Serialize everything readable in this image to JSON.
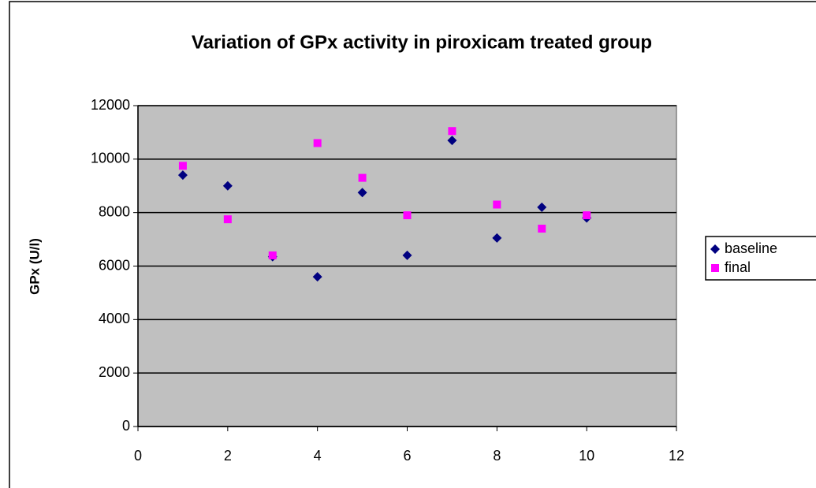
{
  "chart_data": {
    "type": "scatter",
    "title": "Variation of GPx activity in piroxicam treated group",
    "y_label": "GPx (U/l)",
    "series": [
      {
        "name": "baseline",
        "color": "#000080",
        "marker": "diamond",
        "x": [
          1,
          2,
          3,
          4,
          5,
          6,
          7,
          8,
          9,
          10
        ],
        "values": [
          9400,
          9000,
          6350,
          5600,
          8750,
          6400,
          10700,
          7050,
          8200,
          7800
        ]
      },
      {
        "name": "final",
        "color": "#ff00ff",
        "marker": "square",
        "x": [
          1,
          2,
          3,
          4,
          5,
          6,
          7,
          8,
          9,
          10
        ],
        "values": [
          9750,
          7750,
          6400,
          10600,
          9300,
          7900,
          11050,
          8300,
          7400,
          7900
        ]
      }
    ],
    "xlim": [
      0,
      12
    ],
    "xticks": [
      0,
      2,
      4,
      6,
      8,
      10,
      12
    ],
    "ylim": [
      0,
      12000
    ],
    "yticks": [
      0,
      2000,
      4000,
      6000,
      8000,
      10000,
      12000
    ],
    "grid": true,
    "legend": "right"
  }
}
